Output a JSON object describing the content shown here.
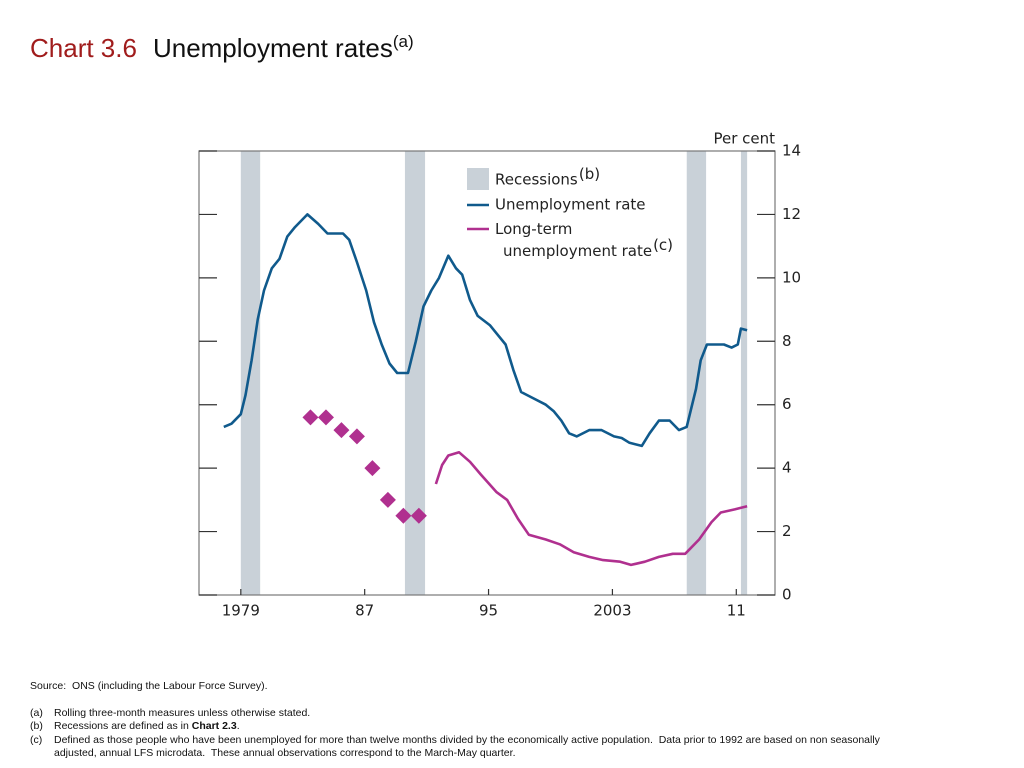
{
  "chart_data": {
    "type": "line",
    "title_label": "Chart 3.6",
    "title": "Unemployment rates",
    "title_note": "(a)",
    "y_unit": "Per cent",
    "xlim": [
      1976.3,
      2013.5
    ],
    "xticks": [
      1979,
      {
        "value": 1987,
        "label": "87"
      },
      {
        "value": 1995,
        "label": "95"
      },
      2003,
      {
        "value": 2011,
        "label": "11"
      }
    ],
    "ylim": [
      0,
      14
    ],
    "yticks": [
      0,
      2,
      4,
      6,
      8,
      10,
      12,
      14
    ],
    "recessions": {
      "name": "Recessions",
      "note": "(b)",
      "color": "#c9d1d8",
      "periods": [
        [
          1979.0,
          1980.25
        ],
        [
          1989.6,
          1990.9
        ],
        [
          2007.8,
          2009.05
        ],
        [
          2011.3,
          2011.7
        ]
      ]
    },
    "series": [
      {
        "name": "Unemployment rate",
        "color": "#105a8c",
        "x": [
          1977.9,
          1978.4,
          1979.0,
          1979.3,
          1979.7,
          1980.1,
          1980.5,
          1981.0,
          1981.5,
          1982.0,
          1982.5,
          1983.3,
          1984.0,
          1984.6,
          1985.6,
          1986.0,
          1986.5,
          1987.1,
          1987.6,
          1988.1,
          1988.6,
          1989.1,
          1989.8,
          1990.3,
          1990.8,
          1991.3,
          1991.8,
          1992.4,
          1992.9,
          1993.3,
          1993.8,
          1994.3,
          1995.1,
          1995.6,
          1996.1,
          1996.6,
          1997.1,
          1997.9,
          1998.7,
          1999.2,
          1999.7,
          2000.2,
          2000.7,
          2001.5,
          2002.3,
          2003.1,
          2003.6,
          2004.1,
          2004.9,
          2005.4,
          2006.0,
          2006.7,
          2007.3,
          2007.8,
          2008.4,
          2008.7,
          2009.1,
          2009.6,
          2010.2,
          2010.7,
          2011.1,
          2011.3,
          2011.7
        ],
        "values": [
          5.3,
          5.4,
          5.7,
          6.3,
          7.4,
          8.7,
          9.6,
          10.3,
          10.6,
          11.3,
          11.6,
          12.0,
          11.7,
          11.4,
          11.4,
          11.2,
          10.5,
          9.6,
          8.6,
          7.9,
          7.3,
          7.0,
          7.0,
          8.0,
          9.1,
          9.6,
          10.0,
          10.7,
          10.3,
          10.1,
          9.3,
          8.8,
          8.5,
          8.2,
          7.9,
          7.1,
          6.4,
          6.2,
          6.0,
          5.8,
          5.5,
          5.1,
          5.0,
          5.2,
          5.2,
          5.0,
          4.95,
          4.8,
          4.7,
          5.1,
          5.5,
          5.5,
          5.2,
          5.3,
          6.5,
          7.4,
          7.9,
          7.9,
          7.9,
          7.8,
          7.9,
          8.4,
          8.35
        ]
      },
      {
        "name": "Long-term unemployment rate",
        "note": "(c)",
        "color": "#b0308f",
        "x": [
          1991.6,
          1992.0,
          1992.4,
          1993.1,
          1993.8,
          1994.5,
          1995.5,
          1996.2,
          1996.9,
          1997.6,
          1998.7,
          1999.6,
          2000.5,
          2001.5,
          2002.4,
          2003.5,
          2004.2,
          2005.1,
          2006.0,
          2006.9,
          2007.7,
          2008.6,
          2009.4,
          2010.0,
          2010.9,
          2011.7
        ],
        "values": [
          3.5,
          4.1,
          4.4,
          4.5,
          4.2,
          3.8,
          3.25,
          3.0,
          2.4,
          1.9,
          1.75,
          1.6,
          1.35,
          1.2,
          1.1,
          1.05,
          0.95,
          1.05,
          1.2,
          1.3,
          1.3,
          1.75,
          2.3,
          2.6,
          2.7,
          2.8
        ],
        "annual": {
          "x": [
            1983.5,
            1984.5,
            1985.5,
            1986.5,
            1987.5,
            1988.5,
            1989.5,
            1990.5
          ],
          "values": [
            5.6,
            5.6,
            5.2,
            5.0,
            4.0,
            3.0,
            2.5,
            2.5
          ]
        }
      }
    ]
  },
  "notes": {
    "source": "Source:  ONS (including the Labour Force Survey).",
    "items": [
      {
        "marker": "(a)",
        "text": "Rolling three-month measures unless otherwise stated."
      },
      {
        "marker": "(b)",
        "text": "Recessions are defined as in ",
        "bold": "Chart 2.3",
        "after": "."
      },
      {
        "marker": "(c)",
        "text": "Defined as those people who have been unemployed for more than twelve months divided by the economically active population.  Data prior to 1992 are based on non seasonally adjusted, annual LFS microdata.  These annual observations correspond to the March-May quarter."
      }
    ]
  }
}
